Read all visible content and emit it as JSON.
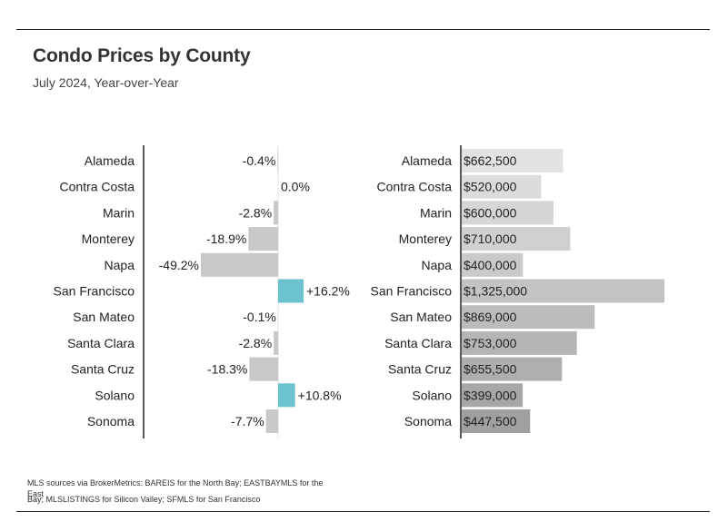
{
  "header": {
    "title": "Condo Prices by County",
    "subtitle": "July 2024, Year-over-Year"
  },
  "footnote": {
    "line1": "MLS sources via BrokerMetrics: BAREIS for the North Bay; EASTBAYMLS for the East",
    "line2": "Bay; MLSLISTINGS for Silicon Valley; SFMLS for San Francisco"
  },
  "colors": {
    "positive": "#6cc3cf",
    "negative": "#c8c8c8",
    "axis": "#222222",
    "price_bars": [
      "#e2e2e2",
      "#dcdcdc",
      "#d6d6d6",
      "#d0d0d0",
      "#cacaca",
      "#c3c3c3",
      "#bcbcbc",
      "#b5b5b5",
      "#aeaeae",
      "#a7a7a7",
      "#a0a0a0"
    ]
  },
  "chart_data": [
    {
      "type": "bar",
      "orientation": "horizontal",
      "title": "",
      "categories": [
        "Alameda",
        "Contra Costa",
        "Marin",
        "Monterey",
        "Napa",
        "San Francisco",
        "San Mateo",
        "Santa Clara",
        "Santa Cruz",
        "Solano",
        "Sonoma"
      ],
      "values": [
        -0.4,
        0.0,
        -2.8,
        -18.9,
        -49.2,
        16.2,
        -0.1,
        -2.8,
        -18.3,
        10.8,
        -7.7
      ],
      "labels": [
        "-0.4%",
        "0.0%",
        "-2.8%",
        "-18.9%",
        "-49.2%",
        "+16.2%",
        "-0.1%",
        "-2.8%",
        "-18.3%",
        "+10.8%",
        "-7.7%"
      ],
      "unit": "%",
      "xlim": [
        -90,
        45
      ]
    },
    {
      "type": "bar",
      "orientation": "horizontal",
      "title": "",
      "categories": [
        "Alameda",
        "Contra Costa",
        "Marin",
        "Monterey",
        "Napa",
        "San Francisco",
        "San Mateo",
        "Santa Clara",
        "Santa Cruz",
        "Solano",
        "Sonoma"
      ],
      "values": [
        662500,
        520000,
        600000,
        710000,
        400000,
        1325000,
        869000,
        753000,
        655500,
        399000,
        447500
      ],
      "labels": [
        "$662,500",
        "$520,000",
        "$600,000",
        "$710,000",
        "$400,000",
        "$1,325,000",
        "$869,000",
        "$753,000",
        "$655,500",
        "$399,000",
        "$447,500"
      ],
      "unit": "$",
      "xlim": [
        0,
        1325000
      ]
    }
  ]
}
